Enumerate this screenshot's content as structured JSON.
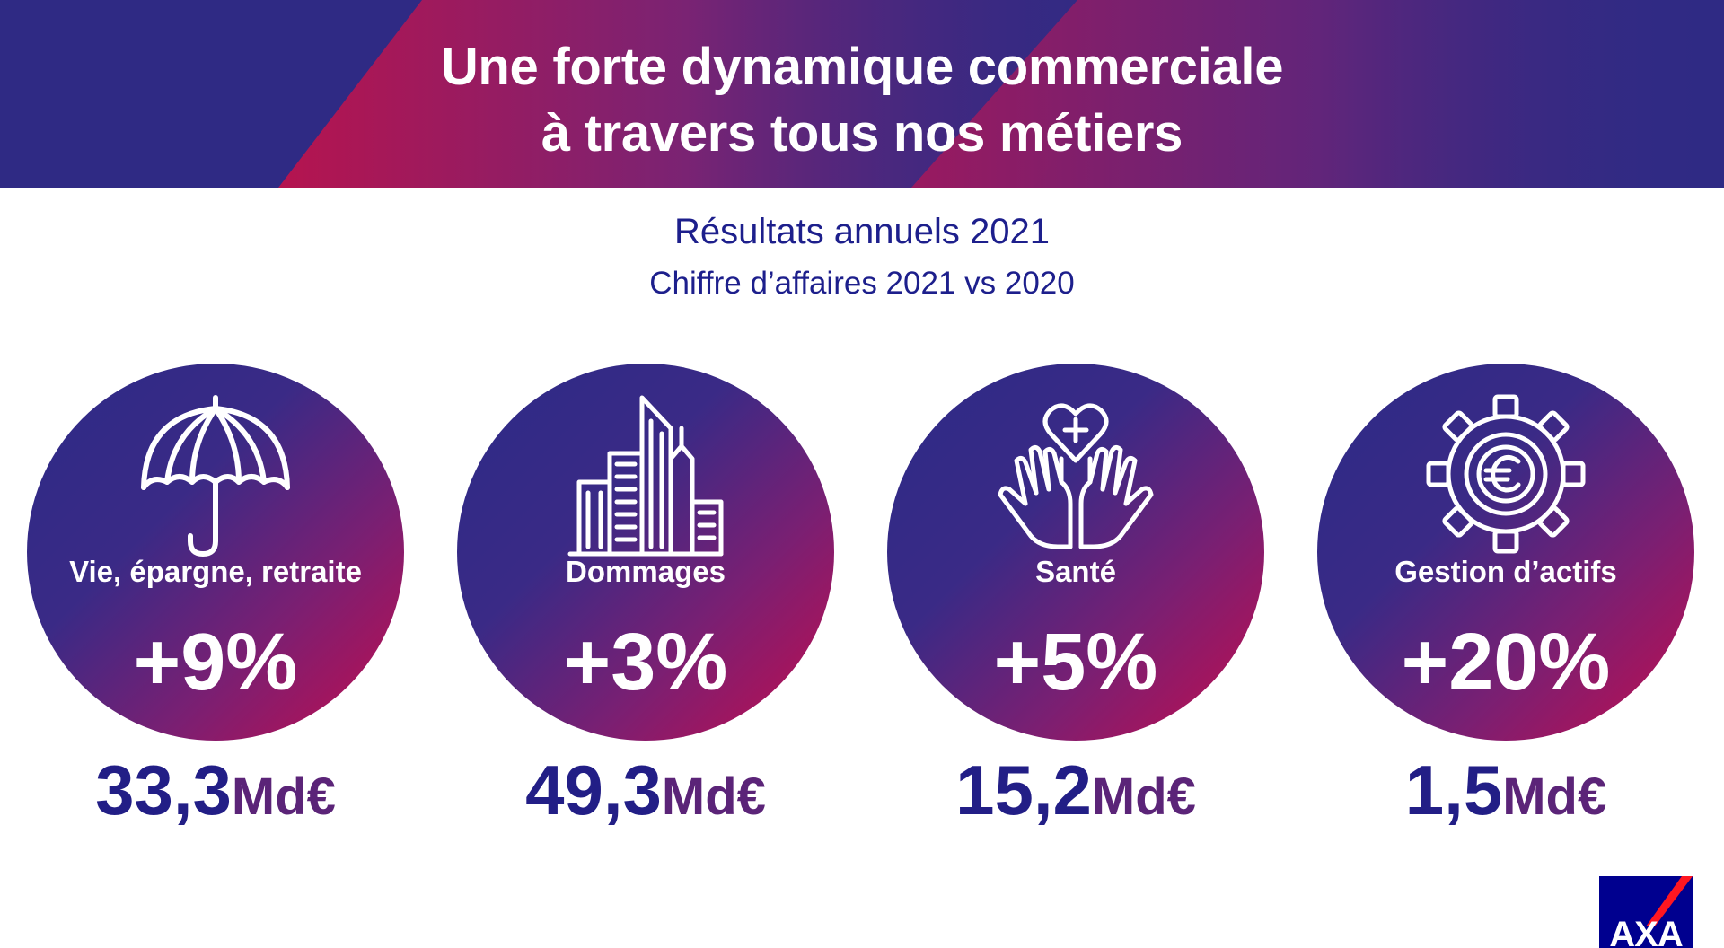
{
  "header": {
    "title_line1": "Une forte dynamique commerciale",
    "title_line2": "à travers tous nos métiers"
  },
  "subtitle": {
    "line1": "Résultats annuels 2021",
    "line2": "Chiffre d’affaires 2021 vs 2020"
  },
  "cards": [
    {
      "icon": "umbrella-icon",
      "label": "Vie, épargne, retraite",
      "change": "+9%",
      "amount": "33,3",
      "unit": "Md€"
    },
    {
      "icon": "buildings-icon",
      "label": "Dommages",
      "change": "+3%",
      "amount": "49,3",
      "unit": "Md€"
    },
    {
      "icon": "heart-hands-icon",
      "label": "Santé",
      "change": "+5%",
      "amount": "15,2",
      "unit": "Md€"
    },
    {
      "icon": "gear-euro-icon",
      "label": "Gestion d’actifs",
      "change": "+20%",
      "amount": "1,5",
      "unit": "Md€"
    }
  ],
  "logo": {
    "text": "AXA"
  },
  "colors": {
    "banner_base": "#2f2a84",
    "banner_accent": "#b5144f",
    "circle_start": "#2c2a87",
    "circle_end": "#c30d4e",
    "subtitle_text": "#1d1f8c",
    "amount_number": "#221e86",
    "amount_unit": "#5b2478",
    "logo_blue": "#00008f",
    "logo_red": "#ff1721"
  }
}
